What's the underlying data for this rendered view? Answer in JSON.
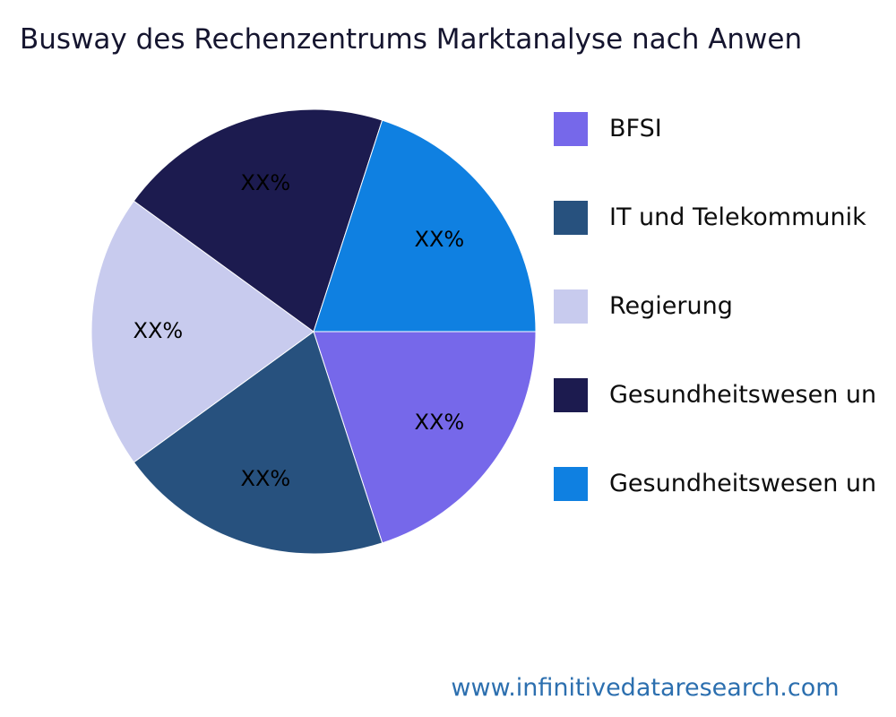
{
  "chart_data": {
    "type": "pie",
    "title": "Busway des Rechenzentrums Marktanalyse nach Anwen",
    "start_angle_deg": 0,
    "direction": "clockwise",
    "legend_position": "right",
    "slices": [
      {
        "label": "BFSI",
        "value": 20,
        "display": "XX%",
        "color": "#7668ea"
      },
      {
        "label": "IT und Telekommunik",
        "value": 20,
        "display": "XX%",
        "color": "#27517e"
      },
      {
        "label": "Regierung",
        "value": 20,
        "display": "XX%",
        "color": "#c8cbee"
      },
      {
        "label": "Gesundheitswesen un",
        "value": 20,
        "display": "XX%",
        "color": "#1c1b4f"
      },
      {
        "label": "Gesundheitswesen un",
        "value": 20,
        "display": "XX%",
        "color": "#0f80e1"
      }
    ]
  },
  "footer": {
    "url_text": "www.infinitivedataresearch.com"
  }
}
